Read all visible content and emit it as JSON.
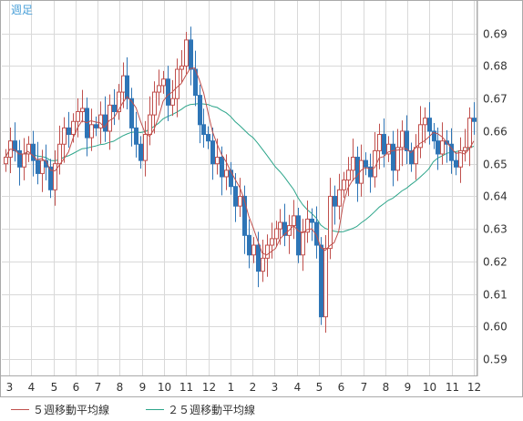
{
  "chart_data": {
    "type": "candlestick",
    "timeframe_label": "週足",
    "ylim": [
      0.585,
      0.7
    ],
    "y_ticks": [
      0.69,
      0.68,
      0.67,
      0.66,
      0.65,
      0.64,
      0.63,
      0.62,
      0.61,
      0.6,
      0.59
    ],
    "x_month_labels": [
      "3",
      "4",
      "5",
      "6",
      "7",
      "8",
      "9",
      "10",
      "11",
      "12",
      "1",
      "2",
      "3",
      "4",
      "5",
      "6",
      "7",
      "8",
      "9",
      "10",
      "11",
      "12"
    ],
    "grid": true,
    "colors": {
      "up": "#c0504d",
      "down": "#2e75b6",
      "ma5": "#c0504d",
      "ma25": "#2ca58a",
      "grid": "#d9d9d9",
      "axis_text": "#333333",
      "timeframe": "#4aa0d8"
    },
    "legend": [
      {
        "name": "５週移動平均線",
        "color": "#c0504d"
      },
      {
        "name": "２５週移動平均線",
        "color": "#2ca58a"
      }
    ],
    "closes": [
      0.652,
      0.657,
      0.654,
      0.649,
      0.653,
      0.656,
      0.651,
      0.647,
      0.651,
      0.649,
      0.642,
      0.65,
      0.656,
      0.661,
      0.659,
      0.663,
      0.666,
      0.667,
      0.658,
      0.662,
      0.661,
      0.665,
      0.66,
      0.668,
      0.666,
      0.672,
      0.677,
      0.67,
      0.661,
      0.656,
      0.651,
      0.659,
      0.665,
      0.672,
      0.674,
      0.676,
      0.668,
      0.67,
      0.679,
      0.68,
      0.688,
      0.679,
      0.671,
      0.662,
      0.659,
      0.657,
      0.65,
      0.652,
      0.646,
      0.648,
      0.643,
      0.637,
      0.64,
      0.628,
      0.622,
      0.625,
      0.617,
      0.621,
      0.625,
      0.627,
      0.63,
      0.632,
      0.628,
      0.631,
      0.634,
      0.622,
      0.629,
      0.633,
      0.632,
      0.625,
      0.603,
      0.624,
      0.64,
      0.637,
      0.642,
      0.645,
      0.648,
      0.652,
      0.644,
      0.651,
      0.649,
      0.646,
      0.654,
      0.659,
      0.653,
      0.656,
      0.648,
      0.655,
      0.66,
      0.654,
      0.65,
      0.655,
      0.662,
      0.664,
      0.66,
      0.657,
      0.653,
      0.657,
      0.656,
      0.651,
      0.649,
      0.654,
      0.655,
      0.664,
      0.663
    ]
  }
}
